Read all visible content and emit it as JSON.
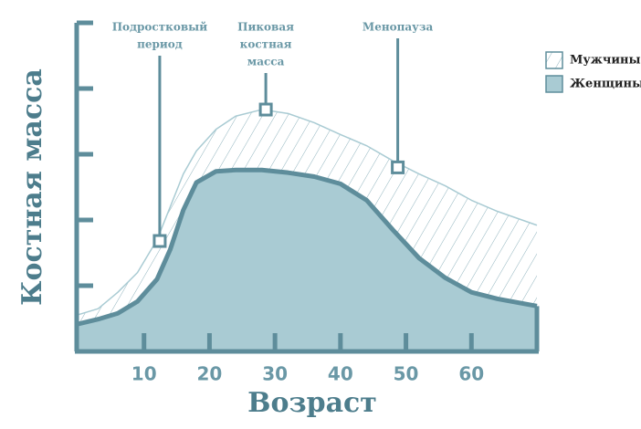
{
  "chart_data": {
    "type": "area",
    "x_label": "Возраст",
    "y_label": "Костная масса",
    "x": [
      0,
      3,
      6,
      9,
      12,
      14,
      16,
      18,
      21,
      24,
      28,
      32,
      36,
      40,
      44,
      48,
      52,
      56,
      60,
      64,
      70
    ],
    "series": [
      {
        "name": "Мужчины",
        "color": "#a9cbd3",
        "hatched": true,
        "values": [
          0.56,
          0.65,
          0.9,
          1.2,
          1.7,
          2.2,
          2.7,
          3.05,
          3.38,
          3.58,
          3.68,
          3.62,
          3.48,
          3.3,
          3.13,
          2.9,
          2.7,
          2.52,
          2.3,
          2.13,
          1.92
        ]
      },
      {
        "name": "Женщины",
        "color": "#a9cbd3",
        "hatched": false,
        "values": [
          0.42,
          0.49,
          0.58,
          0.76,
          1.1,
          1.55,
          2.15,
          2.57,
          2.74,
          2.76,
          2.76,
          2.72,
          2.66,
          2.55,
          2.3,
          1.85,
          1.42,
          1.12,
          0.9,
          0.8,
          0.69
        ]
      }
    ],
    "annotations": [
      {
        "lines": [
          "Подростковый",
          "период"
        ],
        "x": 12.4,
        "y": 1.68
      },
      {
        "lines": [
          "Пиковая",
          "костная",
          "масса"
        ],
        "x": 28.6,
        "y": 3.68
      },
      {
        "lines": [
          "Менопауза"
        ],
        "x": 48.75,
        "y": 2.8
      }
    ],
    "xlim": [
      0,
      70
    ],
    "xticks": [
      10,
      20,
      30,
      40,
      50,
      60
    ],
    "ylim": [
      0,
      5
    ],
    "yticks": [
      1,
      2,
      3,
      4,
      5
    ],
    "legend": "top-right"
  }
}
